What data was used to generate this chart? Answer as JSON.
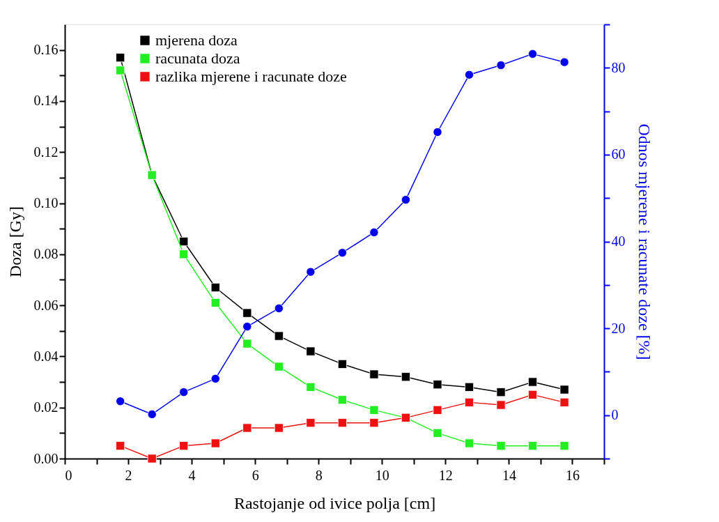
{
  "chart_data": {
    "type": "line",
    "xlabel": "Rastojanje od ivice polja [cm]",
    "ylabel": "Doza [Gy]",
    "y2label": "Odnos mjerene i racunate doze [%]",
    "x": [
      1.75,
      2.75,
      3.75,
      4.75,
      5.75,
      6.75,
      7.75,
      8.75,
      9.75,
      10.75,
      11.75,
      12.75,
      13.75,
      14.75,
      15.75
    ],
    "series": [
      {
        "name": "mjerena doza",
        "color": "#000000",
        "marker": "square",
        "values": [
          0.157,
          0.111,
          0.085,
          0.067,
          0.057,
          0.048,
          0.042,
          0.037,
          0.033,
          0.032,
          0.029,
          0.028,
          0.026,
          0.03,
          0.027
        ]
      },
      {
        "name": "racunata doza",
        "color": "#22ee22",
        "marker": "square",
        "values": [
          0.152,
          0.111,
          0.08,
          0.061,
          0.045,
          0.036,
          0.028,
          0.023,
          0.019,
          0.016,
          0.01,
          0.006,
          0.005,
          0.005,
          0.005
        ]
      },
      {
        "name": "razlika mjerene i racunate doze",
        "color": "#ee1111",
        "marker": "square",
        "values": [
          0.005,
          0.0,
          0.005,
          0.006,
          0.012,
          0.012,
          0.014,
          0.014,
          0.014,
          0.016,
          0.019,
          0.022,
          0.021,
          0.025,
          0.022
        ]
      },
      {
        "color": "#0000ee",
        "marker": "circle",
        "axis": "y2",
        "values": [
          3.2,
          0.2,
          5.3,
          8.4,
          20.4,
          24.6,
          33.0,
          37.4,
          42.1,
          49.6,
          65.2,
          78.4,
          80.6,
          83.2,
          81.3
        ]
      }
    ],
    "xlim": [
      0,
      17
    ],
    "xticks": [
      0,
      {
        "value": 1,
        "label": null
      },
      2,
      {
        "value": 3,
        "label": null
      },
      4,
      {
        "value": 5,
        "label": null
      },
      6,
      {
        "value": 7,
        "label": null
      },
      8,
      {
        "value": 9,
        "label": null
      },
      10,
      {
        "value": 11,
        "label": null
      },
      12,
      {
        "value": 13,
        "label": null
      },
      14,
      {
        "value": 15,
        "label": null
      },
      16,
      {
        "value": 17,
        "label": null
      }
    ],
    "ylim": [
      0,
      0.17
    ],
    "yticks": [
      {
        "value": 0,
        "label": "0.00"
      },
      {
        "value": 0.01,
        "label": null
      },
      0.02,
      {
        "value": 0.03,
        "label": null
      },
      0.04,
      {
        "value": 0.05,
        "label": null
      },
      0.06,
      {
        "value": 0.07,
        "label": null
      },
      0.08,
      {
        "value": 0.09,
        "label": null
      },
      {
        "value": 0.1,
        "label": "0.10"
      },
      {
        "value": 0.11,
        "label": null
      },
      0.12,
      {
        "value": 0.13,
        "label": null
      },
      0.14,
      {
        "value": 0.15,
        "label": null
      },
      0.16
    ],
    "y2lim": [
      -10,
      90
    ],
    "y2ticks": [
      {
        "value": -10,
        "label": null
      },
      0,
      {
        "value": 10,
        "label": null
      },
      20,
      {
        "value": 30,
        "label": null
      },
      40,
      {
        "value": 50,
        "label": null
      },
      60,
      {
        "value": 70,
        "label": null
      },
      80,
      {
        "value": 90,
        "label": null
      }
    ],
    "legend": "top left",
    "grid": false,
    "line_style": "solid"
  }
}
